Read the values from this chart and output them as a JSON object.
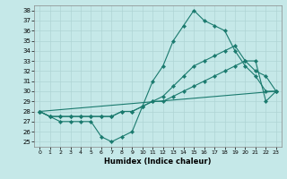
{
  "xlabel": "Humidex (Indice chaleur)",
  "xlim": [
    -0.5,
    23.5
  ],
  "ylim": [
    24.5,
    38.5
  ],
  "xticks": [
    0,
    1,
    2,
    3,
    4,
    5,
    6,
    7,
    8,
    9,
    10,
    11,
    12,
    13,
    14,
    15,
    16,
    17,
    18,
    19,
    20,
    21,
    22,
    23
  ],
  "yticks": [
    25,
    26,
    27,
    28,
    29,
    30,
    31,
    32,
    33,
    34,
    35,
    36,
    37,
    38
  ],
  "bg_color": "#c5e8e8",
  "line_color": "#1a7a6e",
  "grid_color": "#afd4d4",
  "lines": [
    {
      "x": [
        0,
        1,
        2,
        3,
        4,
        5,
        6,
        7,
        8,
        9,
        10,
        11,
        12,
        13,
        14,
        15,
        16,
        17,
        18,
        19,
        20,
        21,
        22,
        23
      ],
      "y": [
        28,
        27.5,
        27,
        27,
        27,
        27,
        25.5,
        25,
        25.5,
        26,
        28.5,
        31,
        32.5,
        35,
        36.5,
        38,
        37,
        36.5,
        36,
        34,
        32.5,
        31.5,
        30,
        30
      ]
    },
    {
      "x": [
        0,
        1,
        2,
        3,
        4,
        5,
        6,
        7,
        8,
        9,
        10,
        11,
        12,
        13,
        14,
        15,
        16,
        17,
        18,
        19,
        20,
        21,
        22,
        23
      ],
      "y": [
        28,
        27.5,
        27.5,
        27.5,
        27.5,
        27.5,
        27.5,
        27.5,
        28,
        28,
        28.5,
        29,
        29.5,
        30.5,
        31.5,
        32.5,
        33,
        33.5,
        34,
        34.5,
        33,
        32,
        31.5,
        30
      ]
    },
    {
      "x": [
        0,
        1,
        2,
        3,
        4,
        5,
        6,
        7,
        8,
        9,
        10,
        11,
        12,
        13,
        14,
        15,
        16,
        17,
        18,
        19,
        20,
        21,
        22,
        23
      ],
      "y": [
        28,
        27.5,
        27.5,
        27.5,
        27.5,
        27.5,
        27.5,
        27.5,
        28,
        28,
        28.5,
        29,
        29,
        29.5,
        30,
        30.5,
        31,
        31.5,
        32,
        32.5,
        33,
        33,
        29,
        30
      ]
    },
    {
      "x": [
        0,
        23
      ],
      "y": [
        28,
        30
      ]
    }
  ]
}
